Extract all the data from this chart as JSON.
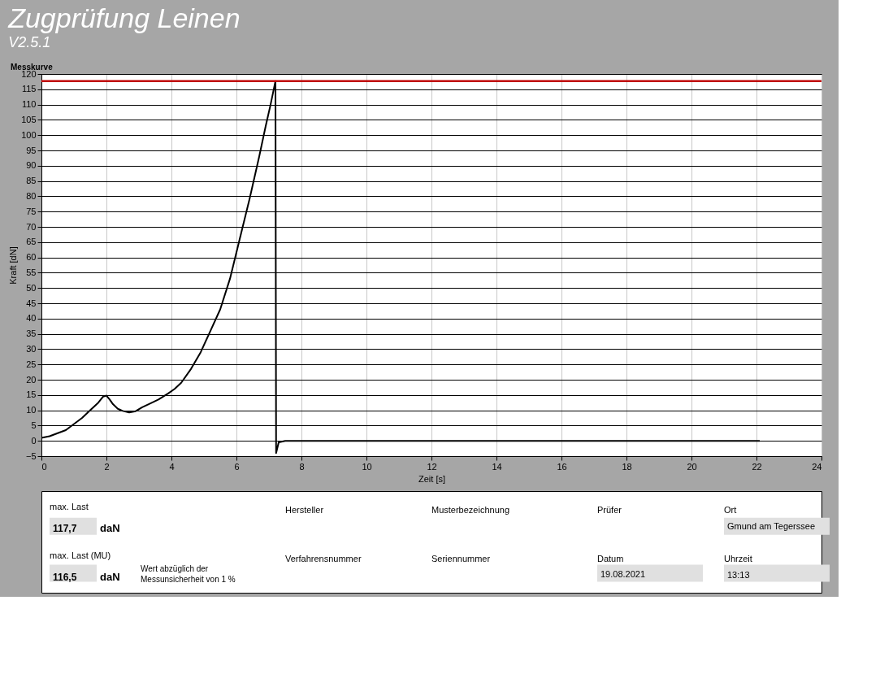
{
  "chart_data": {
    "type": "line",
    "title": "Zugprüfung Leinen",
    "subtitle": "V2.5.1",
    "xlabel": "Zeit [s]",
    "ylabel": "Kraft [dN]",
    "x": [
      0,
      0.25,
      0.5,
      0.75,
      1,
      1.25,
      1.5,
      1.75,
      1.9,
      2,
      2.1,
      2.2,
      2.35,
      2.5,
      2.7,
      2.9,
      3.1,
      3.3,
      3.6,
      3.9,
      4.1,
      4.3,
      4.6,
      4.9,
      5.2,
      5.5,
      5.8,
      6.1,
      6.4,
      6.7,
      6.9,
      7.05,
      7.2,
      7.22,
      7.3,
      7.5,
      8,
      10,
      12,
      14,
      16,
      18,
      20,
      22.1
    ],
    "series": [
      {
        "color": "#000000",
        "values": [
          1,
          1.5,
          2.5,
          3.5,
          5.5,
          7.5,
          10,
          12.5,
          14.5,
          14.8,
          13.5,
          12,
          10.5,
          9.8,
          9.3,
          9.7,
          11,
          12,
          13.5,
          15.5,
          17,
          19,
          23.5,
          29,
          36,
          43,
          53,
          66,
          79,
          93,
          103,
          110,
          117.7,
          -4,
          -0.5,
          0,
          0,
          0,
          0,
          0,
          0,
          0,
          0,
          0
        ]
      }
    ],
    "xlim": [
      0,
      24
    ],
    "xticks": [
      0,
      2,
      4,
      6,
      8,
      10,
      12,
      14,
      16,
      18,
      20,
      22,
      24
    ],
    "ylim": [
      -5,
      120
    ],
    "yticks": [
      -5,
      0,
      5,
      10,
      15,
      20,
      25,
      30,
      35,
      40,
      45,
      50,
      55,
      60,
      65,
      70,
      75,
      80,
      85,
      90,
      95,
      100,
      105,
      110,
      115,
      120
    ],
    "grid": true,
    "legend": false,
    "ref_lines": [
      {
        "axis": "y",
        "value": 117.7,
        "color": "#c00000"
      }
    ],
    "annotations": [
      "Messkurve",
      "max. Last",
      "117,7",
      "daN",
      "max. Last (MU)",
      "116,5",
      "daN",
      "Wert abzüglich der Messunsicherheit von 1 %",
      "Hersteller",
      "Musterbezeichnung",
      "Prüfer",
      "Ort",
      "Gmund am Tegerssee",
      "Verfahrensnummer",
      "Seriennummer",
      "Datum",
      "19.08.2021",
      "Uhrzeit",
      "13:13"
    ]
  }
}
